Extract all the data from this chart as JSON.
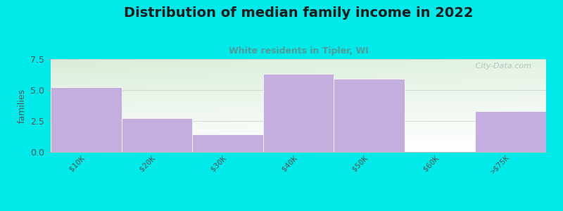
{
  "title": "Distribution of median family income in 2022",
  "subtitle": "White residents in Tipler, WI",
  "categories": [
    "$10K",
    "$20K",
    "$30K",
    "$40K",
    "$50K",
    "$60K",
    ">$75K"
  ],
  "values": [
    5.2,
    2.7,
    1.4,
    6.3,
    5.9,
    0,
    3.3
  ],
  "bar_color": "#c4aee0",
  "ylabel": "families",
  "ylim": [
    0,
    7.5
  ],
  "yticks": [
    0,
    2.5,
    5,
    7.5
  ],
  "background_outer": "#00eaea",
  "background_plot_topleft": "#d8edd8",
  "background_plot_bottomright": "#f8f8ff",
  "title_color": "#1a1a1a",
  "subtitle_color": "#559999",
  "tick_label_color": "#555555",
  "axis_label_color": "#555555",
  "title_fontsize": 14,
  "subtitle_fontsize": 9,
  "ylabel_fontsize": 9,
  "watermark_text": " City-Data.com",
  "watermark_color": "#aabbbb"
}
